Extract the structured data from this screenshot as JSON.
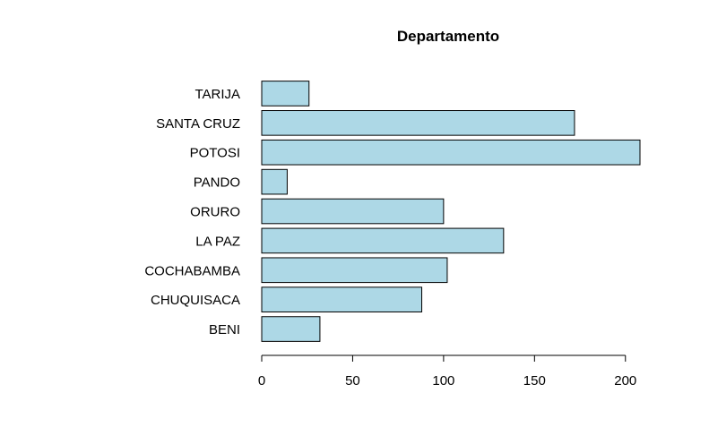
{
  "chart_data": {
    "type": "bar",
    "orientation": "horizontal",
    "title": "Departamento",
    "xlabel": "",
    "ylabel": "",
    "categories": [
      "BENI",
      "CHUQUISACA",
      "COCHABAMBA",
      "LA PAZ",
      "ORURO",
      "PANDO",
      "POTOSI",
      "SANTA CRUZ",
      "TARIJA"
    ],
    "values": [
      32,
      88,
      102,
      133,
      100,
      14,
      208,
      172,
      26
    ],
    "xlim": [
      0,
      208
    ],
    "x_ticks": [
      0,
      50,
      100,
      150,
      200
    ],
    "x_tick_labels": [
      "0",
      "50",
      "100",
      "150",
      "200"
    ],
    "grid": false,
    "legend": "none",
    "colors": {
      "bar_fill": "#add8e6",
      "bar_stroke": "#000000"
    }
  }
}
